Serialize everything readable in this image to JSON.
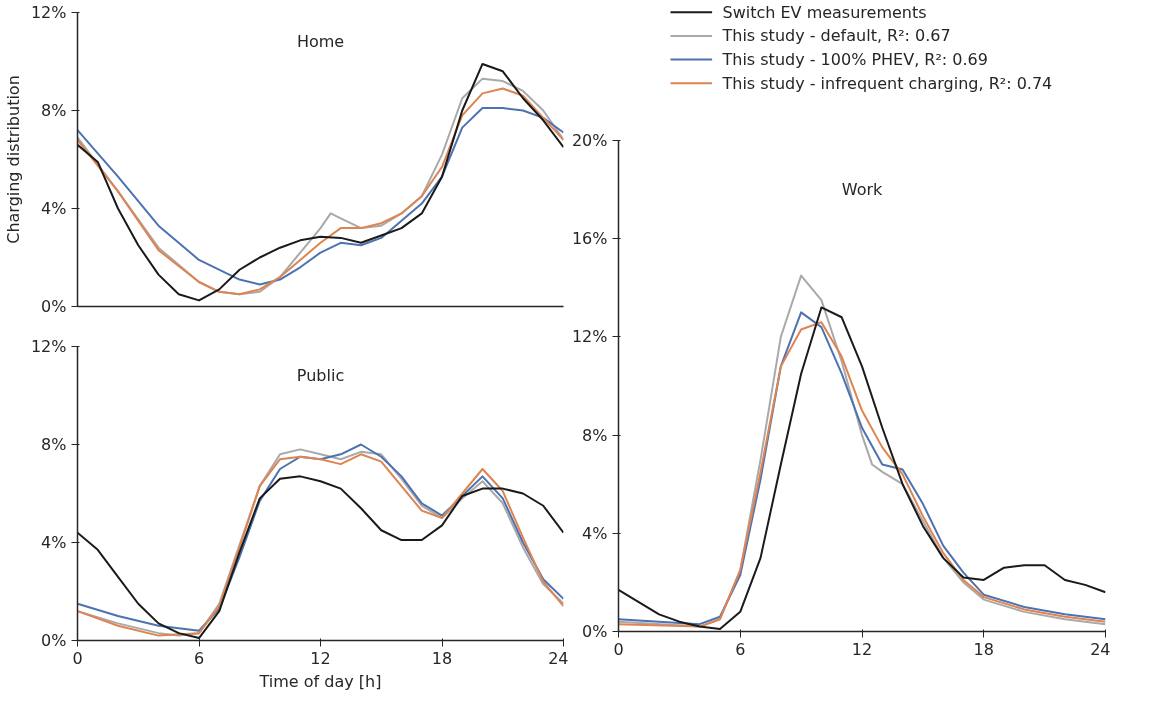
{
  "chart_data": [
    {
      "type": "line",
      "title": "Home",
      "ylabel": "Charging distribution",
      "xlim": [
        0,
        24
      ],
      "ylim": [
        0,
        12
      ],
      "xticks": [
        0,
        6,
        12,
        18,
        24
      ],
      "yticks": [
        {
          "value": 0,
          "label": "0%"
        },
        {
          "value": 4,
          "label": "4%"
        },
        {
          "value": 8,
          "label": "8%"
        },
        {
          "value": 12,
          "label": "12%"
        }
      ],
      "tick_labels": "y",
      "grid": false,
      "series": [
        {
          "color": "#a9a9a9",
          "x": [
            0,
            2,
            4,
            6,
            7,
            8,
            9,
            10,
            11,
            12,
            12.5,
            13,
            14,
            15,
            16,
            17,
            18,
            19,
            20,
            21,
            22,
            23,
            24
          ],
          "values": [
            6.9,
            4.7,
            2.4,
            1.0,
            0.6,
            0.5,
            0.6,
            1.2,
            2.2,
            3.2,
            3.8,
            3.6,
            3.2,
            3.3,
            3.8,
            4.5,
            6.2,
            8.5,
            9.3,
            9.2,
            8.8,
            8.0,
            6.8
          ]
        },
        {
          "color": "#4c72b0",
          "x": [
            0,
            2,
            4,
            6,
            8,
            9,
            10,
            11,
            12,
            13,
            14,
            15,
            16,
            17,
            18,
            19,
            20,
            21,
            22,
            23,
            24
          ],
          "values": [
            7.2,
            5.3,
            3.3,
            1.9,
            1.1,
            0.9,
            1.1,
            1.6,
            2.2,
            2.6,
            2.5,
            2.8,
            3.5,
            4.2,
            5.3,
            7.3,
            8.1,
            8.1,
            8.0,
            7.7,
            7.1
          ]
        },
        {
          "color": "#dd8452",
          "x": [
            0,
            2,
            4,
            6,
            7,
            8,
            9,
            10,
            11,
            12,
            13,
            14,
            15,
            16,
            17,
            18,
            19,
            20,
            21,
            22,
            23,
            24
          ],
          "values": [
            6.8,
            4.7,
            2.3,
            1.0,
            0.6,
            0.5,
            0.7,
            1.2,
            1.9,
            2.6,
            3.2,
            3.2,
            3.4,
            3.8,
            4.5,
            5.7,
            7.8,
            8.7,
            8.9,
            8.6,
            7.7,
            6.8
          ]
        },
        {
          "color": "#1a1a1a",
          "x": [
            0,
            1,
            2,
            3,
            4,
            5,
            6,
            7,
            8,
            9,
            10,
            11,
            12,
            13,
            14,
            15,
            16,
            17,
            18,
            19,
            20,
            21,
            22,
            23,
            24
          ],
          "values": [
            6.6,
            5.9,
            4.0,
            2.5,
            1.3,
            0.5,
            0.25,
            0.7,
            1.5,
            2.0,
            2.4,
            2.7,
            2.85,
            2.8,
            2.6,
            2.9,
            3.2,
            3.8,
            5.3,
            8.0,
            9.9,
            9.6,
            8.5,
            7.6,
            6.5
          ]
        }
      ]
    },
    {
      "type": "line",
      "title": "Public",
      "xlabel": "Time of day [h]",
      "xlim": [
        0,
        24
      ],
      "ylim": [
        0,
        12
      ],
      "xticks": [
        0,
        6,
        12,
        18,
        24
      ],
      "yticks": [
        {
          "value": 0,
          "label": "0%"
        },
        {
          "value": 4,
          "label": "4%"
        },
        {
          "value": 8,
          "label": "8%"
        },
        {
          "value": 12,
          "label": "12%"
        }
      ],
      "grid": false,
      "series": [
        {
          "color": "#a9a9a9",
          "x": [
            0,
            2,
            4,
            5,
            6,
            7,
            8,
            9,
            10,
            11,
            12,
            13,
            14,
            15,
            16,
            17,
            18,
            19,
            20,
            21,
            22,
            23,
            24
          ],
          "values": [
            1.2,
            0.7,
            0.3,
            0.2,
            0.3,
            1.5,
            3.9,
            6.3,
            7.6,
            7.8,
            7.6,
            7.4,
            7.7,
            7.6,
            6.6,
            5.5,
            5.0,
            5.8,
            6.5,
            5.6,
            3.8,
            2.3,
            1.5
          ]
        },
        {
          "color": "#4c72b0",
          "x": [
            0,
            2,
            4,
            6,
            7,
            8,
            9,
            10,
            11,
            12,
            13,
            14,
            15,
            16,
            17,
            18,
            19,
            20,
            21,
            22,
            23,
            24
          ],
          "values": [
            1.5,
            1.0,
            0.6,
            0.4,
            1.3,
            3.4,
            5.7,
            7.0,
            7.5,
            7.4,
            7.6,
            8.0,
            7.5,
            6.7,
            5.6,
            5.1,
            5.9,
            6.7,
            5.8,
            4.0,
            2.5,
            1.7
          ]
        },
        {
          "color": "#dd8452",
          "x": [
            0,
            2,
            4,
            6,
            7,
            8,
            9,
            10,
            11,
            12,
            13,
            14,
            15,
            16,
            17,
            18,
            19,
            20,
            21,
            22,
            23,
            24
          ],
          "values": [
            1.2,
            0.6,
            0.2,
            0.3,
            1.4,
            3.8,
            6.3,
            7.4,
            7.5,
            7.4,
            7.2,
            7.6,
            7.3,
            6.3,
            5.3,
            5.0,
            6.0,
            7.0,
            6.1,
            4.2,
            2.4,
            1.4
          ]
        },
        {
          "color": "#1a1a1a",
          "x": [
            0,
            1,
            2,
            3,
            4,
            5,
            6,
            7,
            8,
            9,
            10,
            11,
            12,
            13,
            14,
            15,
            16,
            17,
            18,
            19,
            20,
            21,
            22,
            23,
            24
          ],
          "values": [
            4.4,
            3.7,
            2.6,
            1.5,
            0.7,
            0.3,
            0.1,
            1.2,
            3.6,
            5.8,
            6.6,
            6.7,
            6.5,
            6.2,
            5.4,
            4.5,
            4.1,
            4.1,
            4.7,
            5.9,
            6.2,
            6.2,
            6.0,
            5.5,
            4.4
          ]
        }
      ]
    },
    {
      "type": "line",
      "title": "Work",
      "xlim": [
        0,
        24
      ],
      "ylim": [
        0,
        20
      ],
      "xticks": [
        0,
        6,
        12,
        18,
        24
      ],
      "yticks": [
        {
          "value": 0,
          "label": "0%"
        },
        {
          "value": 4,
          "label": "4%"
        },
        {
          "value": 8,
          "label": "8%"
        },
        {
          "value": 12,
          "label": "12%"
        },
        {
          "value": 16,
          "label": "16%"
        },
        {
          "value": 20,
          "label": "20%"
        }
      ],
      "grid": false,
      "legend": "top right",
      "series": [
        {
          "name": "This study - default,  R²: 0.67",
          "color": "#a9a9a9",
          "x": [
            0,
            4,
            5,
            6,
            7,
            8,
            9,
            10,
            11,
            12,
            12.5,
            13,
            14,
            15,
            16,
            17,
            18,
            20,
            22,
            24
          ],
          "values": [
            0.4,
            0.2,
            0.5,
            2.5,
            7.0,
            12.0,
            14.5,
            13.5,
            11.0,
            8.0,
            6.8,
            6.5,
            6.0,
            4.5,
            3.0,
            2.0,
            1.3,
            0.8,
            0.5,
            0.3
          ]
        },
        {
          "name": "This study - 100% PHEV,  R²: 0.69",
          "color": "#4c72b0",
          "x": [
            0,
            4,
            5,
            6,
            7,
            8,
            9,
            10,
            11,
            12,
            13,
            14,
            15,
            16,
            17,
            18,
            20,
            22,
            24
          ],
          "values": [
            0.5,
            0.3,
            0.6,
            2.3,
            6.2,
            10.8,
            13.0,
            12.4,
            10.5,
            8.3,
            6.8,
            6.6,
            5.2,
            3.5,
            2.4,
            1.5,
            1.0,
            0.7,
            0.5
          ]
        },
        {
          "name": "This study - infrequent charging,  R²: 0.74",
          "color": "#dd8452",
          "x": [
            0,
            4,
            5,
            6,
            7,
            8,
            9,
            10,
            11,
            12,
            13,
            14,
            15,
            16,
            17,
            18,
            20,
            22,
            24
          ],
          "values": [
            0.3,
            0.2,
            0.5,
            2.5,
            6.5,
            10.8,
            12.3,
            12.6,
            11.2,
            9.0,
            7.5,
            6.4,
            4.7,
            3.2,
            2.1,
            1.4,
            0.9,
            0.6,
            0.4
          ]
        },
        {
          "name": "Switch EV measurements",
          "color": "#1a1a1a",
          "x": [
            0,
            1,
            2,
            3,
            4,
            5,
            6,
            7,
            8,
            9,
            10,
            11,
            12,
            13,
            14,
            15,
            16,
            17,
            18,
            19,
            20,
            21,
            22,
            23,
            24
          ],
          "values": [
            1.7,
            1.2,
            0.7,
            0.4,
            0.2,
            0.1,
            0.8,
            3.0,
            6.8,
            10.5,
            13.2,
            12.8,
            10.8,
            8.3,
            6.0,
            4.3,
            3.0,
            2.2,
            2.1,
            2.6,
            2.7,
            2.7,
            2.1,
            1.9,
            1.6
          ]
        }
      ]
    }
  ]
}
